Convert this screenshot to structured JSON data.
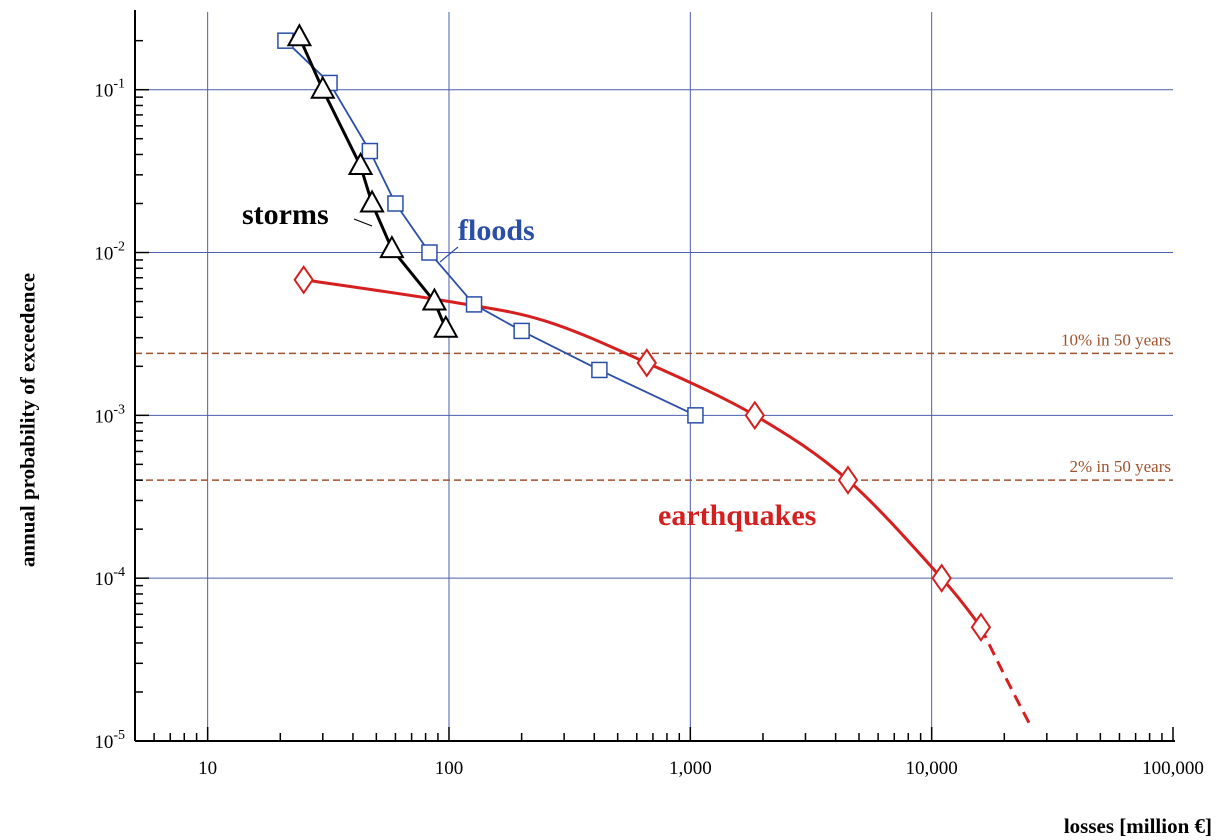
{
  "chart_data": {
    "type": "line",
    "title": "",
    "xlabel": "losses [million €]",
    "ylabel": "annual probability of exceedence",
    "x_scale": "log",
    "y_scale": "log",
    "xlim": [
      5,
      100000
    ],
    "ylim": [
      1e-05,
      0.3
    ],
    "grid": true,
    "x_ticks": [
      {
        "value": 10,
        "label": "10"
      },
      {
        "value": 100,
        "label": "100"
      },
      {
        "value": 1000,
        "label": "1,000"
      },
      {
        "value": 10000,
        "label": "10,000"
      },
      {
        "value": 100000,
        "label": "100,000"
      }
    ],
    "y_ticks": [
      {
        "value": 1e-05,
        "base": "10",
        "exp": "-5"
      },
      {
        "value": 0.0001,
        "base": "10",
        "exp": "-4"
      },
      {
        "value": 0.001,
        "base": "10",
        "exp": "-3"
      },
      {
        "value": 0.01,
        "base": "10",
        "exp": "-2"
      },
      {
        "value": 0.1,
        "base": "10",
        "exp": "-1"
      }
    ],
    "reference_lines": [
      {
        "label": "10% in 50 years",
        "y": 0.0024,
        "color": "#a0522d"
      },
      {
        "label": "2% in 50 years",
        "y": 0.0004,
        "color": "#a0522d"
      }
    ],
    "series": [
      {
        "name": "earthquakes",
        "color": "#d62020",
        "marker": "diamond",
        "x": [
          25,
          100,
          250,
          660,
          1850,
          4500,
          11000,
          16000
        ],
        "y": [
          0.0068,
          0.005,
          0.0038,
          0.0021,
          0.001,
          0.0004,
          0.0001,
          5e-05
        ],
        "marker_points": [
          [
            25,
            0.0068
          ],
          [
            660,
            0.0021
          ],
          [
            1850,
            0.001
          ],
          [
            4500,
            0.0004
          ],
          [
            11000,
            0.0001
          ],
          [
            16000,
            5e-05
          ]
        ],
        "dashed_extension": {
          "x": [
            16000,
            20000,
            26000
          ],
          "y": [
            5e-05,
            2.5e-05,
            1.2e-05
          ]
        }
      },
      {
        "name": "floods",
        "color": "#2b4fa8",
        "marker": "square",
        "x": [
          21,
          32,
          47,
          60,
          83,
          127,
          200,
          420,
          1050
        ],
        "y": [
          0.2,
          0.11,
          0.042,
          0.02,
          0.01,
          0.0048,
          0.0033,
          0.0019,
          0.001
        ]
      },
      {
        "name": "storms",
        "color": "#000000",
        "marker": "triangle",
        "x": [
          24,
          30,
          43,
          48,
          58,
          87,
          97
        ],
        "y": [
          0.21,
          0.1,
          0.034,
          0.02,
          0.0105,
          0.005,
          0.0034
        ]
      }
    ]
  }
}
